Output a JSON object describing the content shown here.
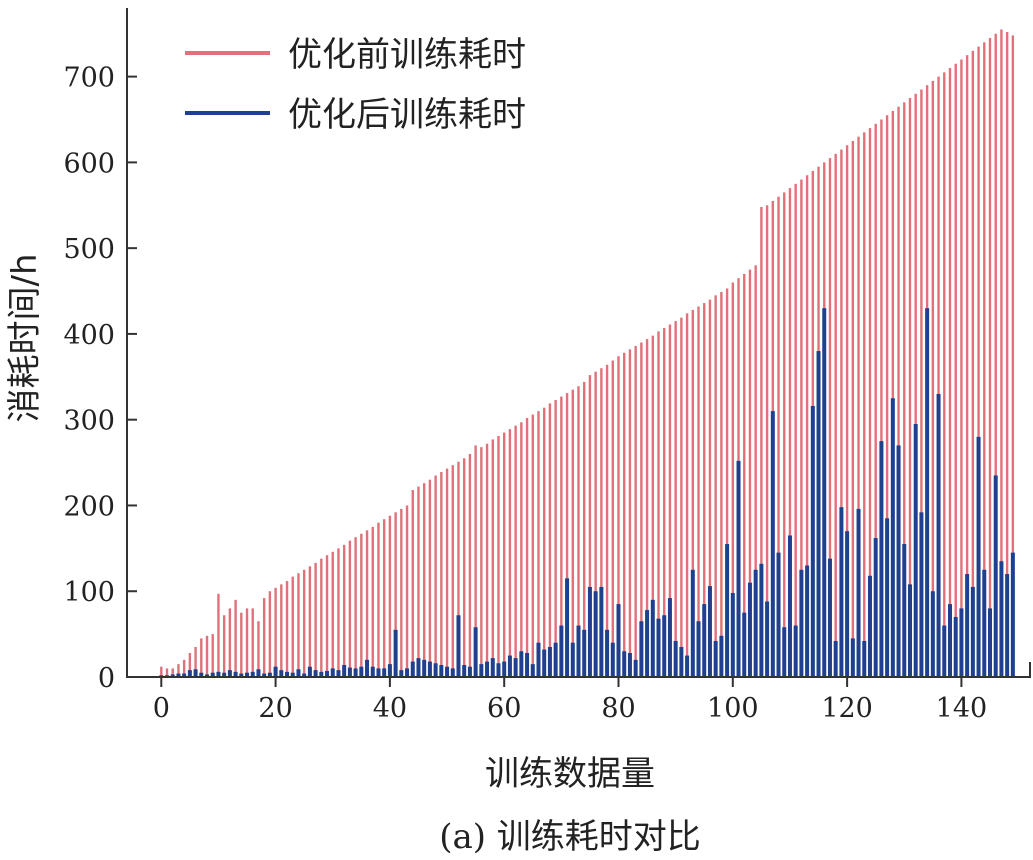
{
  "chart_data": {
    "type": "bar",
    "ylabel": "消耗时间/h",
    "xlabel": "训练数据量",
    "caption": "(a) 训练耗时对比",
    "xlim": [
      -6,
      152
    ],
    "ylim": [
      0,
      780
    ],
    "x_ticks": [
      0,
      20,
      40,
      60,
      80,
      100,
      120,
      140
    ],
    "y_ticks": [
      0,
      100,
      200,
      300,
      400,
      500,
      600,
      700
    ],
    "legend_position": "top-left",
    "series": [
      {
        "name": "优化前训练耗时",
        "color": "#e0717b",
        "values": [
          12,
          10,
          10,
          15,
          20,
          28,
          35,
          45,
          48,
          50,
          97,
          72,
          80,
          90,
          75,
          80,
          80,
          65,
          92,
          100,
          104,
          108,
          112,
          117,
          121,
          125,
          129,
          133,
          138,
          142,
          146,
          150,
          154,
          159,
          163,
          167,
          171,
          175,
          180,
          184,
          188,
          192,
          196,
          200,
          218,
          222,
          226,
          230,
          235,
          239,
          243,
          247,
          251,
          255,
          260,
          270,
          268,
          272,
          277,
          281,
          285,
          289,
          293,
          297,
          302,
          306,
          310,
          314,
          319,
          323,
          327,
          331,
          335,
          339,
          344,
          352,
          356,
          360,
          364,
          369,
          374,
          378,
          382,
          386,
          390,
          394,
          398,
          403,
          407,
          411,
          415,
          419,
          424,
          428,
          432,
          436,
          440,
          445,
          449,
          453,
          460,
          465,
          470,
          475,
          480,
          548,
          550,
          555,
          560,
          565,
          570,
          575,
          580,
          585,
          590,
          595,
          600,
          605,
          610,
          615,
          620,
          625,
          630,
          635,
          640,
          645,
          650,
          655,
          660,
          665,
          670,
          675,
          680,
          685,
          690,
          695,
          700,
          705,
          710,
          715,
          720,
          725,
          730,
          735,
          740,
          745,
          750,
          755,
          752,
          748
        ]
      },
      {
        "name": "优化后训练耗时",
        "color": "#1f3f8f",
        "values": [
          2,
          2,
          3,
          4,
          4,
          8,
          9,
          5,
          3,
          5,
          6,
          5,
          8,
          6,
          4,
          5,
          6,
          9,
          4,
          5,
          12,
          8,
          6,
          5,
          9,
          4,
          12,
          8,
          6,
          7,
          10,
          8,
          14,
          11,
          10,
          12,
          20,
          12,
          10,
          10,
          15,
          55,
          8,
          10,
          18,
          22,
          20,
          18,
          16,
          14,
          12,
          10,
          72,
          14,
          12,
          58,
          15,
          18,
          22,
          16,
          18,
          25,
          22,
          30,
          28,
          15,
          40,
          32,
          35,
          40,
          60,
          115,
          40,
          60,
          55,
          105,
          100,
          105,
          55,
          40,
          85,
          30,
          28,
          20,
          65,
          78,
          90,
          68,
          72,
          92,
          42,
          35,
          25,
          125,
          65,
          85,
          106,
          42,
          48,
          155,
          98,
          252,
          75,
          110,
          125,
          132,
          88,
          310,
          145,
          58,
          165,
          60,
          125,
          130,
          316,
          380,
          430,
          138,
          42,
          198,
          170,
          45,
          196,
          42,
          118,
          162,
          275,
          185,
          325,
          270,
          155,
          108,
          295,
          192,
          430,
          100,
          330,
          60,
          85,
          70,
          80,
          120,
          105,
          280,
          125,
          80,
          235,
          135,
          120,
          145
        ]
      }
    ]
  }
}
